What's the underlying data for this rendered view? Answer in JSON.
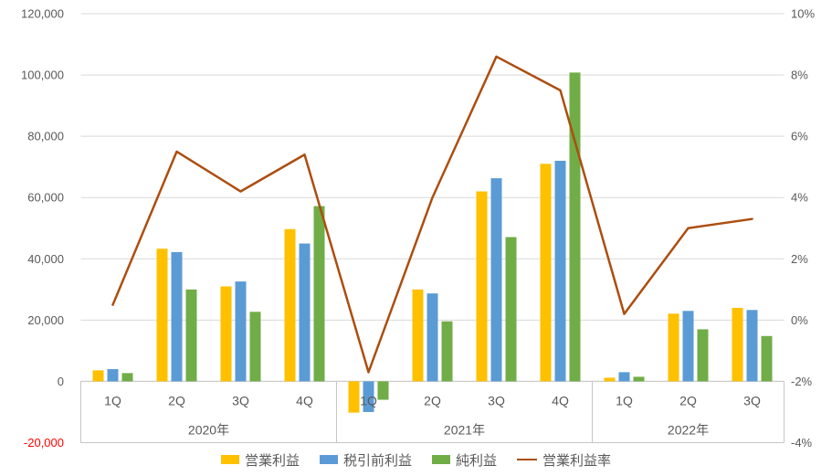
{
  "chart_data": {
    "type": "bar",
    "subtype": "grouped-bars-with-line",
    "title": "",
    "categories": [
      "1Q",
      "2Q",
      "3Q",
      "4Q",
      "1Q",
      "2Q",
      "3Q",
      "4Q",
      "1Q",
      "2Q",
      "3Q"
    ],
    "year_groups": [
      {
        "label": "2020年",
        "count": 4
      },
      {
        "label": "2021年",
        "count": 4
      },
      {
        "label": "2022年",
        "count": 3
      }
    ],
    "series": [
      {
        "name": "営業利益",
        "type": "bar",
        "axis": "left",
        "color": "#FFC000",
        "values": [
          3600,
          43300,
          31000,
          49700,
          -10200,
          30000,
          62000,
          71000,
          1200,
          22100,
          24000
        ]
      },
      {
        "name": "税引前利益",
        "type": "bar",
        "axis": "left",
        "color": "#5B9BD5",
        "values": [
          4000,
          42200,
          32600,
          45000,
          -10000,
          28700,
          66300,
          72000,
          3000,
          23000,
          23300
        ]
      },
      {
        "name": "純利益",
        "type": "bar",
        "axis": "left",
        "color": "#70AD47",
        "values": [
          2700,
          30000,
          22700,
          57200,
          -6000,
          19600,
          47100,
          100800,
          1500,
          17000,
          14800
        ]
      },
      {
        "name": "営業利益率",
        "type": "line",
        "axis": "right",
        "color": "#AC4E10",
        "values": [
          0.5,
          5.5,
          4.2,
          5.4,
          -1.7,
          4.0,
          8.6,
          7.5,
          0.2,
          3.0,
          3.3
        ]
      }
    ],
    "left_axis": {
      "min": -20000,
      "max": 120000,
      "step": 20000,
      "tick_labels": [
        "-20,000",
        "0",
        "20,000",
        "40,000",
        "60,000",
        "80,000",
        "100,000",
        "120,000"
      ],
      "text_color": "#595959",
      "negative_color": "#FF0000"
    },
    "right_axis": {
      "min": -4,
      "max": 10,
      "step": 2,
      "tick_labels": [
        "-4%",
        "-2%",
        "0%",
        "2%",
        "4%",
        "6%",
        "8%",
        "10%"
      ],
      "text_color": "#595959"
    },
    "grid": true,
    "grid_color": "#D9D9D9",
    "band_border_color": "#C6C6C6",
    "category_text_color": "#595959",
    "legend_position": "bottom"
  }
}
